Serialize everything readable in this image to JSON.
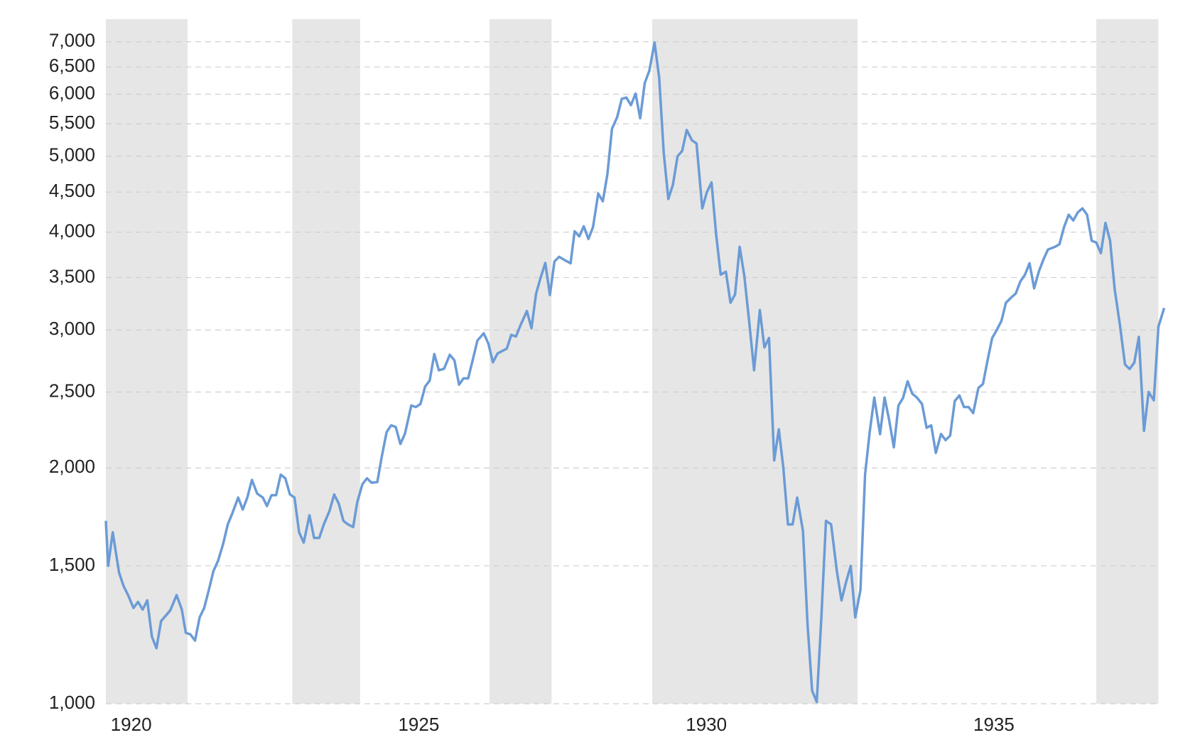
{
  "chart_data": {
    "type": "line",
    "log_scale_y": true,
    "grid": true,
    "color": "#6b9bd6",
    "band_color": "#e6e6e6",
    "xlim": [
      1919.56,
      1937.99
    ],
    "ylim": [
      1000,
      7480
    ],
    "xticks": [
      1920,
      1925,
      1930,
      1935
    ],
    "yticks": [
      {
        "value": 1000,
        "label": "1,000"
      },
      {
        "value": 1500,
        "label": "1,500"
      },
      {
        "value": 2000,
        "label": "2,000"
      },
      {
        "value": 2500,
        "label": "2,500"
      },
      {
        "value": 3000,
        "label": "3,000"
      },
      {
        "value": 3500,
        "label": "3,500"
      },
      {
        "value": 4000,
        "label": "4,000"
      },
      {
        "value": 4500,
        "label": "4,500"
      },
      {
        "value": 5000,
        "label": "5,000"
      },
      {
        "value": 5500,
        "label": "5,500"
      },
      {
        "value": 6000,
        "label": "6,000"
      },
      {
        "value": 6500,
        "label": "6,500"
      },
      {
        "value": 7000,
        "label": "7,000"
      }
    ],
    "shaded_ranges": [
      [
        1919.56,
        1920.98
      ],
      [
        1922.8,
        1923.98
      ],
      [
        1926.23,
        1927.31
      ],
      [
        1929.06,
        1932.63
      ],
      [
        1936.78,
        1937.86
      ]
    ],
    "x": [
      1919.56,
      1919.6,
      1919.68,
      1919.79,
      1919.87,
      1919.95,
      1920.04,
      1920.12,
      1920.2,
      1920.28,
      1920.36,
      1920.44,
      1920.52,
      1920.6,
      1920.68,
      1920.79,
      1920.88,
      1920.95,
      1921.03,
      1921.11,
      1921.19,
      1921.27,
      1921.35,
      1921.43,
      1921.51,
      1921.6,
      1921.68,
      1921.76,
      1921.86,
      1921.94,
      1922.02,
      1922.1,
      1922.19,
      1922.29,
      1922.36,
      1922.44,
      1922.52,
      1922.6,
      1922.68,
      1922.76,
      1922.84,
      1922.92,
      1923.0,
      1923.1,
      1923.18,
      1923.27,
      1923.35,
      1923.45,
      1923.53,
      1923.61,
      1923.69,
      1923.77,
      1923.86,
      1923.93,
      1924.02,
      1924.1,
      1924.18,
      1924.28,
      1924.36,
      1924.44,
      1924.52,
      1924.6,
      1924.68,
      1924.76,
      1924.87,
      1924.95,
      1925.03,
      1925.11,
      1925.19,
      1925.27,
      1925.35,
      1925.44,
      1925.54,
      1925.62,
      1925.7,
      1925.78,
      1925.86,
      1925.94,
      1926.02,
      1926.13,
      1926.21,
      1926.29,
      1926.37,
      1926.45,
      1926.53,
      1926.61,
      1926.69,
      1926.77,
      1926.88,
      1926.96,
      1927.04,
      1927.12,
      1927.2,
      1927.28,
      1927.36,
      1927.44,
      1927.55,
      1927.64,
      1927.71,
      1927.79,
      1927.87,
      1927.95,
      1928.03,
      1928.12,
      1928.2,
      1928.28,
      1928.36,
      1928.45,
      1928.53,
      1928.61,
      1928.69,
      1928.77,
      1928.85,
      1928.93,
      1929.01,
      1929.1,
      1929.18,
      1929.26,
      1929.34,
      1929.42,
      1929.5,
      1929.58,
      1929.66,
      1929.75,
      1929.83,
      1929.93,
      1930.01,
      1930.09,
      1930.17,
      1930.25,
      1930.34,
      1930.42,
      1930.5,
      1930.58,
      1930.66,
      1930.74,
      1930.83,
      1930.93,
      1931.01,
      1931.09,
      1931.18,
      1931.26,
      1931.34,
      1931.42,
      1931.5,
      1931.58,
      1931.68,
      1931.76,
      1931.84,
      1931.92,
      1932.0,
      1932.08,
      1932.17,
      1932.27,
      1932.35,
      1932.43,
      1932.51,
      1932.59,
      1932.68,
      1932.76,
      1932.84,
      1932.92,
      1933.02,
      1933.1,
      1933.18,
      1933.26,
      1933.34,
      1933.42,
      1933.5,
      1933.58,
      1933.66,
      1933.75,
      1933.83,
      1933.91,
      1933.99,
      1934.08,
      1934.16,
      1934.24,
      1934.32,
      1934.4,
      1934.48,
      1934.56,
      1934.64,
      1934.73,
      1934.81,
      1934.89,
      1934.97,
      1935.05,
      1935.13,
      1935.21,
      1935.3,
      1935.38,
      1935.46,
      1935.54,
      1935.62,
      1935.7,
      1935.78,
      1935.86,
      1935.94,
      1936.06,
      1936.14,
      1936.22,
      1936.3,
      1936.38,
      1936.46,
      1936.54,
      1936.62,
      1936.7,
      1936.78,
      1936.86,
      1936.94,
      1937.02,
      1937.1,
      1937.19,
      1937.28,
      1937.36,
      1937.44,
      1937.52,
      1937.61,
      1937.69,
      1937.78,
      1937.86,
      1937.96
    ],
    "values": [
      1712,
      1500,
      1655,
      1470,
      1412,
      1374,
      1325,
      1349,
      1319,
      1355,
      1218,
      1177,
      1275,
      1295,
      1316,
      1376,
      1319,
      1232,
      1226,
      1204,
      1289,
      1325,
      1397,
      1477,
      1522,
      1600,
      1694,
      1751,
      1833,
      1770,
      1833,
      1931,
      1855,
      1833,
      1788,
      1846,
      1846,
      1961,
      1940,
      1850,
      1833,
      1655,
      1606,
      1740,
      1628,
      1628,
      1694,
      1764,
      1850,
      1800,
      1712,
      1694,
      1681,
      1808,
      1907,
      1940,
      1915,
      1919,
      2073,
      2221,
      2267,
      2256,
      2146,
      2212,
      2403,
      2392,
      2413,
      2540,
      2586,
      2795,
      2665,
      2677,
      2789,
      2744,
      2555,
      2603,
      2603,
      2750,
      2909,
      2971,
      2883,
      2728,
      2800,
      2820,
      2840,
      2957,
      2943,
      3043,
      3172,
      3015,
      3337,
      3500,
      3654,
      3325,
      3670,
      3720,
      3680,
      3650,
      4010,
      3950,
      4070,
      3920,
      4060,
      4480,
      4380,
      4740,
      5420,
      5610,
      5920,
      5940,
      5810,
      6010,
      5590,
      6200,
      6430,
      6985,
      6300,
      5040,
      4410,
      4600,
      5000,
      5080,
      5400,
      5240,
      5190,
      4290,
      4500,
      4630,
      3980,
      3530,
      3560,
      3250,
      3330,
      3830,
      3520,
      3100,
      2665,
      3180,
      2850,
      2930,
      2045,
      2240,
      2000,
      1694,
      1694,
      1833,
      1662,
      1260,
      1039,
      1005,
      1289,
      1712,
      1694,
      1477,
      1355,
      1430,
      1500,
      1289,
      1397,
      1961,
      2221,
      2460,
      2208,
      2460,
      2300,
      2125,
      2403,
      2456,
      2580,
      2488,
      2460,
      2413,
      2250,
      2267,
      2090,
      2210,
      2170,
      2200,
      2435,
      2475,
      2392,
      2392,
      2350,
      2530,
      2560,
      2744,
      2930,
      3000,
      3080,
      3250,
      3300,
      3340,
      3460,
      3530,
      3650,
      3390,
      3560,
      3690,
      3800,
      3830,
      3860,
      4060,
      4210,
      4140,
      4240,
      4290,
      4210,
      3900,
      3880,
      3760,
      4110,
      3900,
      3380,
      3050,
      2710,
      2675,
      2725,
      2940,
      2230,
      2500,
      2440,
      3030,
      3200
    ]
  }
}
